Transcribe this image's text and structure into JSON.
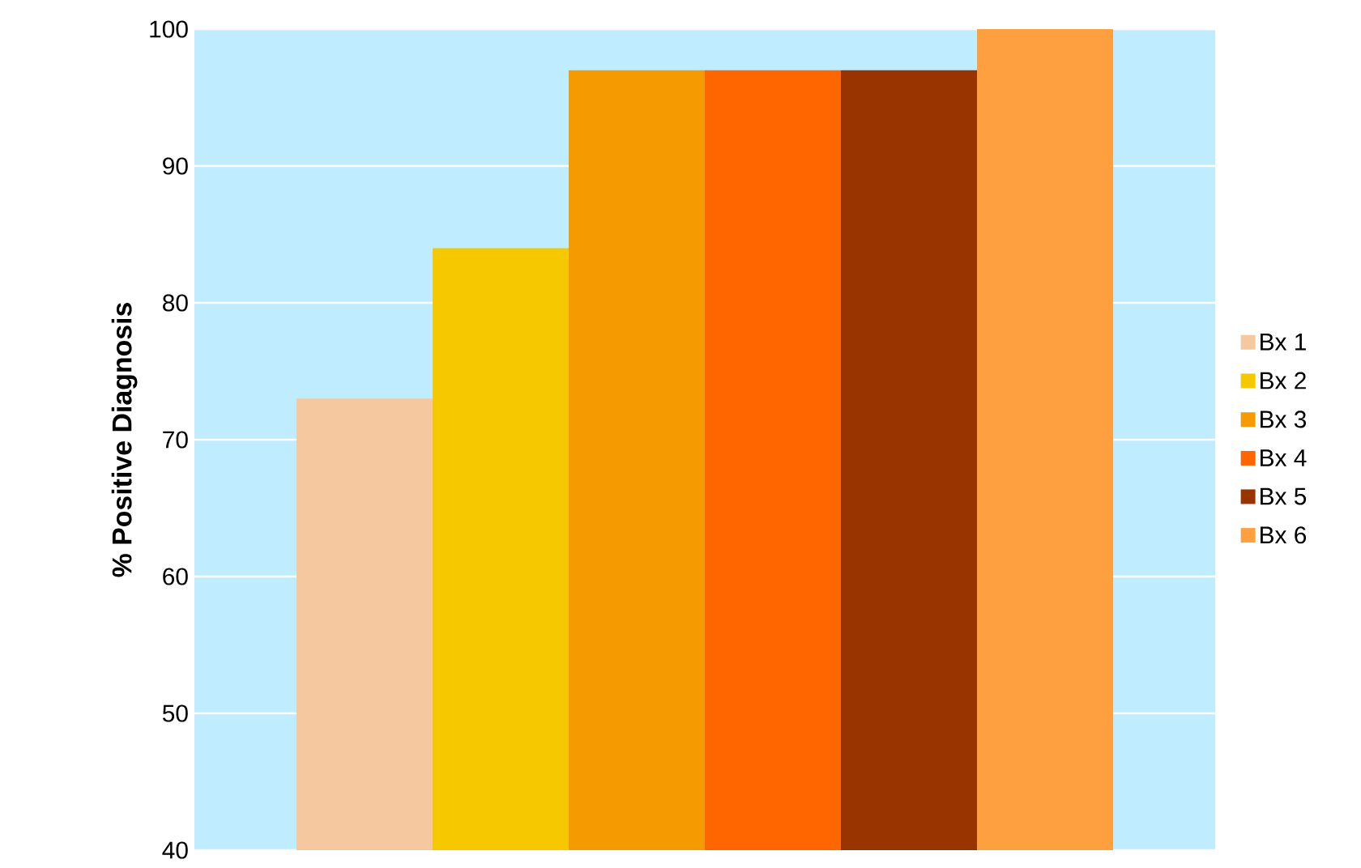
{
  "chart_data": {
    "type": "bar",
    "ylabel": "% Positive Diagnosis",
    "categories": [
      null
    ],
    "series": [
      {
        "name": "Bx 1",
        "color": "#f5c8a0",
        "values": [
          73
        ]
      },
      {
        "name": "Bx 2",
        "color": "#f5c800",
        "values": [
          84
        ]
      },
      {
        "name": "Bx 3",
        "color": "#f59a00",
        "values": [
          97
        ]
      },
      {
        "name": "Bx 4",
        "color": "#ff6600",
        "values": [
          97
        ]
      },
      {
        "name": "Bx 5",
        "color": "#993300",
        "values": [
          97
        ]
      },
      {
        "name": "Bx 6",
        "color": "#ffa040",
        "values": [
          100
        ]
      }
    ],
    "ylim": [
      40,
      100
    ],
    "yticks": [
      40,
      50,
      60,
      70,
      80,
      90,
      100
    ],
    "grid": "y",
    "legend": "right"
  }
}
